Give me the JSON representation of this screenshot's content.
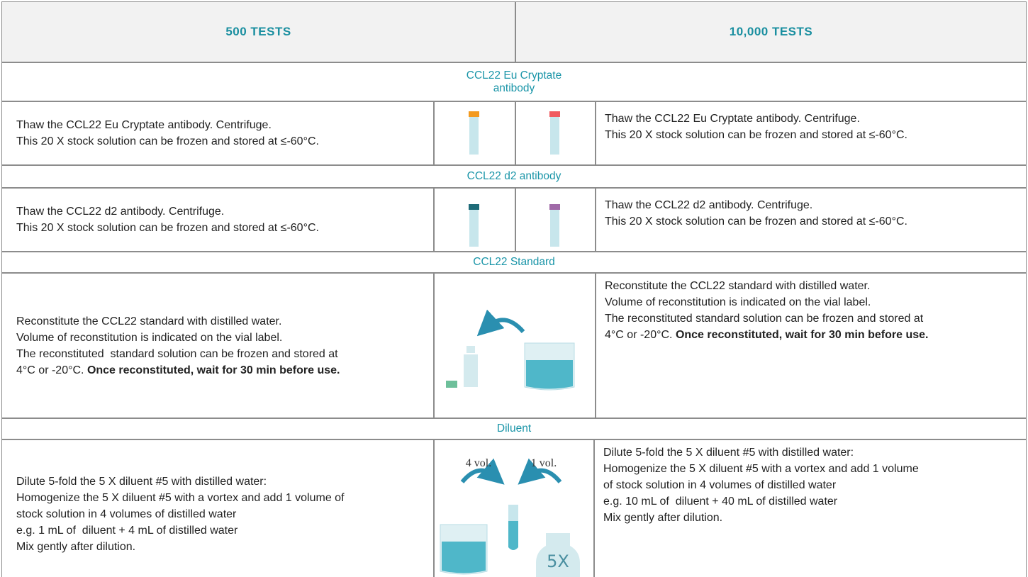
{
  "header": {
    "columns": [
      "500 TESTS",
      "10,000 TESTS"
    ]
  },
  "sections": [
    {
      "title": "CCL22 Eu Cryptate\nantibody",
      "left": [
        [
          "Thaw the CCL22 Eu Cryptate antibody. Centrifuge."
        ],
        [
          "This 20 X stock solution can be frozen and stored at ≤-60°C."
        ]
      ],
      "right": [
        [
          "Thaw the CCL22 Eu Cryptate antibody. Centrifuge."
        ],
        [
          "This 20 X stock solution can be frozen and stored at ≤-60°C."
        ]
      ]
    },
    {
      "title": "CCL22 d2 antibody",
      "left": [
        [
          "Thaw the CCL22 d2 antibody. Centrifuge."
        ],
        [
          "This 20 X stock solution can be frozen and stored at ≤-60°C."
        ]
      ],
      "right": [
        [
          "Thaw the CCL22 d2 antibody. Centrifuge."
        ],
        [
          "This 20 X stock solution can be frozen and stored at ≤-60°C."
        ]
      ]
    },
    {
      "title": "CCL22 Standard",
      "left": [
        [
          "Reconstitute the CCL22 standard with distilled water."
        ],
        [
          "Volume of reconstitution is indicated on the vial label."
        ],
        [
          "The reconstituted  standard solution can be frozen and stored at"
        ],
        [
          "4°C or -20°C. ",
          {
            "text": "Once reconstituted, wait for 30 min before use.",
            "bold": true
          }
        ]
      ],
      "right": [
        [
          "Reconstitute the CCL22 standard with distilled water."
        ],
        [
          "Volume of reconstitution is indicated on the vial label."
        ],
        [
          "The reconstituted standard solution can be frozen and stored at"
        ],
        [
          "4°C or -20°C. ",
          {
            "text": "Once reconstituted, wait for 30 min before use.",
            "bold": true
          }
        ]
      ]
    },
    {
      "title": "Diluent",
      "left": [
        [
          "Dilute 5-fold the 5 X diluent #5 with distilled water:"
        ],
        [
          "Homogenize the 5 X diluent #5 with a vortex and add 1 volume of"
        ],
        [
          "stock solution in 4 volumes of distilled water"
        ],
        [
          "e.g. 1 mL of  diluent + 4 mL of distilled water"
        ],
        [
          "Mix gently after dilution."
        ]
      ],
      "right": [
        [
          "Dilute 5-fold the 5 X diluent #5 with distilled water:"
        ],
        [
          "Homogenize the 5 X diluent #5 with a vortex and add 1 volume"
        ],
        [
          "of stock solution in 4 volumes of distilled water"
        ],
        [
          "e.g. 10 mL of  diluent + 40 mL of distilled water"
        ],
        [
          "Mix gently after dilution."
        ]
      ],
      "figure_labels": [
        "4 vol.",
        "1 vol.",
        "5X"
      ]
    }
  ]
}
